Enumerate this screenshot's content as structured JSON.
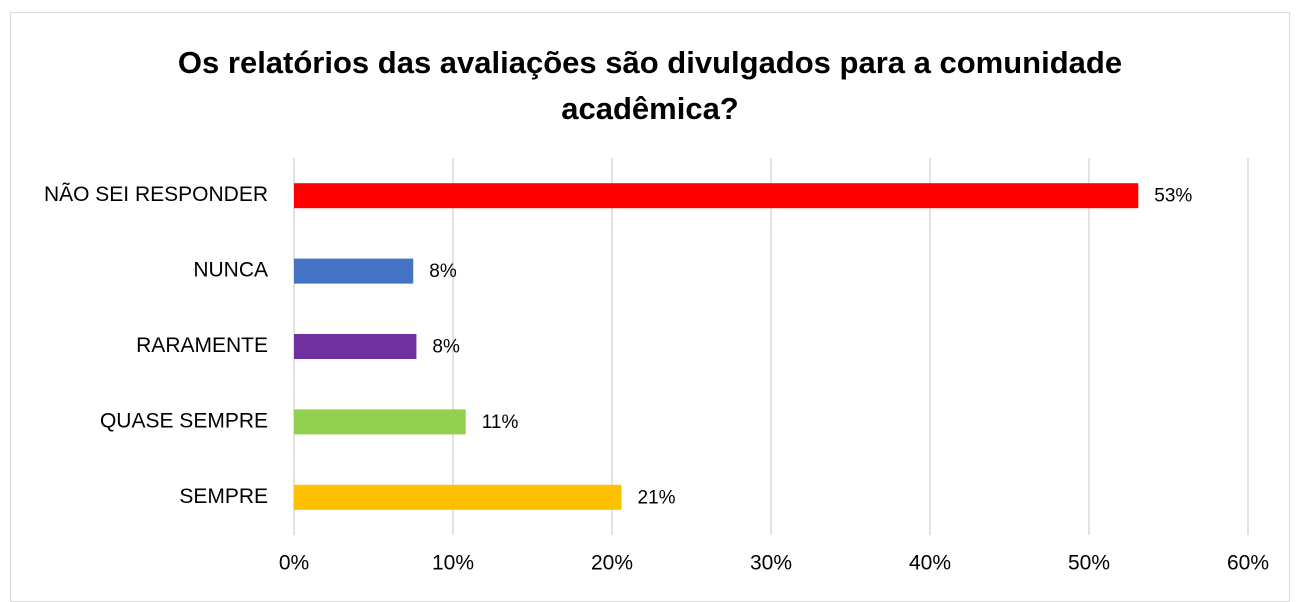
{
  "chart_data": {
    "type": "hbar",
    "title": "Os relatórios das avaliações são divulgados para a comunidade acadêmica?",
    "categories": [
      "NÃO SEI RESPONDER",
      "NUNCA",
      "RARAMENTE",
      "QUASE SEMPRE",
      "SEMPRE"
    ],
    "values": [
      53.1,
      7.5,
      7.7,
      10.8,
      20.6
    ],
    "value_labels": [
      "53%",
      "8%",
      "8%",
      "11%",
      "21%"
    ],
    "colors": [
      "#ff0000",
      "#4472c4",
      "#7030a0",
      "#92d050",
      "#ffc000"
    ],
    "xlim": [
      0,
      60
    ],
    "xticks": [
      {
        "value": 0,
        "label": "0%"
      },
      {
        "value": 10,
        "label": "10%"
      },
      {
        "value": 20,
        "label": "20%"
      },
      {
        "value": 30,
        "label": "30%"
      },
      {
        "value": 40,
        "label": "40%"
      },
      {
        "value": 50,
        "label": "50%"
      },
      {
        "value": 60,
        "label": "60%"
      }
    ],
    "grid": true
  }
}
